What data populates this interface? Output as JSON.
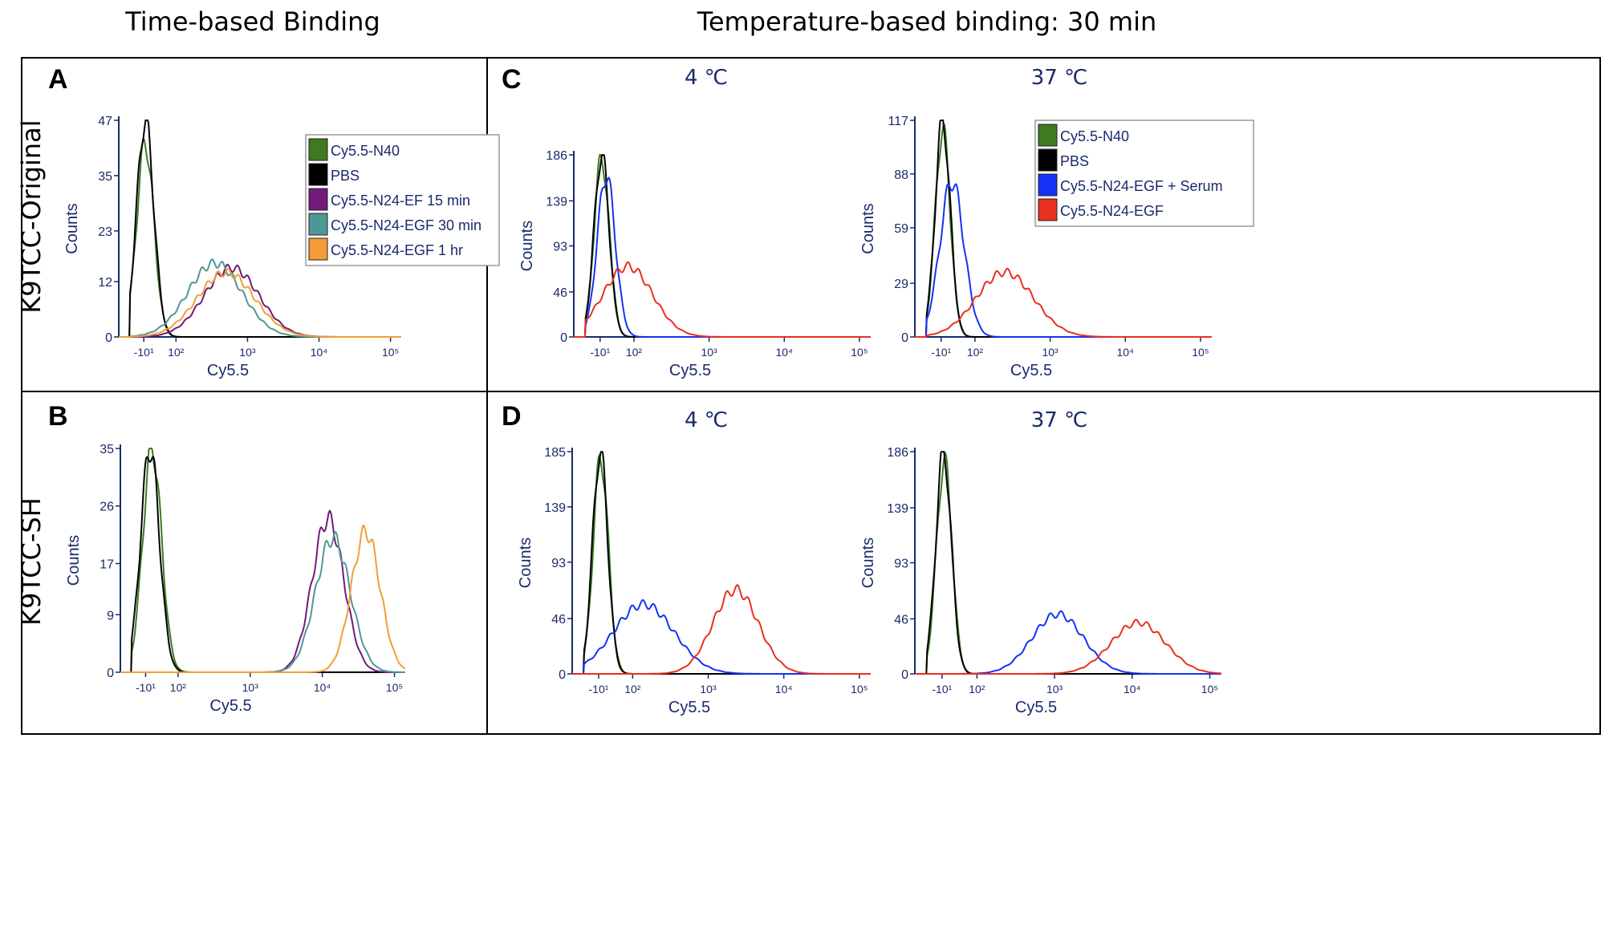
{
  "figure": {
    "col_titles": [
      "Time-based Binding",
      "Temperature-based binding: 30 min"
    ],
    "row_labels": [
      "K9TCC-Original",
      "K9TCC-SH"
    ],
    "panel_letters": [
      "A",
      "B",
      "C",
      "D"
    ],
    "subtitles": [
      "4 ℃",
      "37 ℃",
      "4 ℃",
      "37 ℃"
    ],
    "legends": {
      "time": [
        "Cy5.5-N40",
        "PBS",
        "Cy5.5-N24-EF 15 min",
        "Cy5.5-N24-EGF 30 min",
        "Cy5.5-N24-EGF 1 hr"
      ],
      "temp": [
        "Cy5.5-N40",
        "PBS",
        "Cy5.5-N24-EGF + Serum",
        "Cy5.5-N24-EGF"
      ]
    },
    "colors": {
      "green": "#3d7a22",
      "black": "#000000",
      "purple": "#731a7a",
      "teal": "#4f9796",
      "orange": "#f29d37",
      "blue": "#1432f5",
      "red": "#e8301f",
      "axis": "#1a2a6c"
    }
  },
  "chart_data": [
    {
      "panel": "A",
      "type": "line",
      "xlabel": "Cy5.5",
      "ylabel": "Counts",
      "x_scale": "biexponential",
      "xticks": [
        "-10¹",
        "10²",
        "10³",
        "10⁴",
        "10⁵"
      ],
      "yticks": [
        "0",
        "12",
        "23",
        "35",
        "47"
      ],
      "ylim": [
        0,
        47
      ],
      "legend": "time",
      "series": [
        {
          "name": "Cy5.5-N40",
          "color": "green",
          "peak_x": -5,
          "peak_count": 42,
          "spread": 0.12
        },
        {
          "name": "PBS",
          "color": "black",
          "peak_x": -5,
          "peak_count": 47,
          "spread": 0.12
        },
        {
          "name": "Cy5.5-N24-EF 15 min",
          "color": "purple",
          "peak_x": 600,
          "peak_count": 15,
          "spread": 0.38
        },
        {
          "name": "Cy5.5-N24-EGF 30 min",
          "color": "teal",
          "peak_x": 350,
          "peak_count": 16,
          "spread": 0.38
        },
        {
          "name": "Cy5.5-N24-EGF 1 hr",
          "color": "orange",
          "peak_x": 500,
          "peak_count": 14,
          "spread": 0.4
        }
      ]
    },
    {
      "panel": "B",
      "type": "line",
      "xlabel": "Cy5.5",
      "ylabel": "Counts",
      "x_scale": "biexponential",
      "xticks": [
        "-10¹",
        "10²",
        "10³",
        "10⁴",
        "10⁵"
      ],
      "yticks": [
        "0",
        "9",
        "17",
        "26",
        "35"
      ],
      "ylim": [
        0,
        35
      ],
      "series": [
        {
          "name": "Cy5.5-N40",
          "color": "green",
          "peak_x": 12,
          "peak_count": 35,
          "spread": 0.13
        },
        {
          "name": "PBS",
          "color": "black",
          "peak_x": 5,
          "peak_count": 35,
          "spread": 0.13
        },
        {
          "name": "Cy5.5-N24-EF 15 min",
          "color": "purple",
          "peak_x": 12000,
          "peak_count": 24,
          "spread": 0.22
        },
        {
          "name": "Cy5.5-N24-EGF 30 min",
          "color": "teal",
          "peak_x": 14000,
          "peak_count": 21,
          "spread": 0.24
        },
        {
          "name": "Cy5.5-N24-EGF 1 hr",
          "color": "orange",
          "peak_x": 40000,
          "peak_count": 22,
          "spread": 0.2
        }
      ]
    },
    {
      "panel": "C-4",
      "type": "line",
      "xlabel": "Cy5.5",
      "ylabel": "Counts",
      "x_scale": "biexponential",
      "xticks": [
        "-10¹",
        "10²",
        "10³",
        "10⁴",
        "10⁵"
      ],
      "yticks": [
        "0",
        "46",
        "93",
        "139",
        "186"
      ],
      "ylim": [
        0,
        186
      ],
      "series": [
        {
          "name": "Cy5.5-N40",
          "color": "green",
          "peak_x": -5,
          "peak_count": 183,
          "spread": 0.1
        },
        {
          "name": "PBS",
          "color": "black",
          "peak_x": -5,
          "peak_count": 186,
          "spread": 0.1
        },
        {
          "name": "Cy5.5-N24-EGF + Serum",
          "color": "blue",
          "peak_x": 10,
          "peak_count": 165,
          "spread": 0.12
        },
        {
          "name": "Cy5.5-N24-EGF",
          "color": "red",
          "peak_x": 80,
          "peak_count": 72,
          "spread": 0.33
        }
      ]
    },
    {
      "panel": "C-37",
      "type": "line",
      "xlabel": "Cy5.5",
      "ylabel": "Counts",
      "x_scale": "biexponential",
      "xticks": [
        "-10¹",
        "10²",
        "10³",
        "10⁴",
        "10⁵"
      ],
      "yticks": [
        "0",
        "29",
        "59",
        "88",
        "117"
      ],
      "ylim": [
        0,
        117
      ],
      "legend": "temp",
      "series": [
        {
          "name": "Cy5.5-N40",
          "color": "green",
          "peak_x": -5,
          "peak_count": 112,
          "spread": 0.1
        },
        {
          "name": "PBS",
          "color": "black",
          "peak_x": -5,
          "peak_count": 117,
          "spread": 0.1
        },
        {
          "name": "Cy5.5-N24-EGF + Serum",
          "color": "blue",
          "peak_x": 25,
          "peak_count": 84,
          "spread": 0.16
        },
        {
          "name": "Cy5.5-N24-EGF",
          "color": "red",
          "peak_x": 250,
          "peak_count": 35,
          "spread": 0.38
        }
      ]
    },
    {
      "panel": "D-4",
      "type": "line",
      "xlabel": "Cy5.5",
      "ylabel": "Counts",
      "x_scale": "biexponential",
      "xticks": [
        "-10¹",
        "10²",
        "10³",
        "10⁴",
        "10⁵"
      ],
      "yticks": [
        "0",
        "46",
        "93",
        "139",
        "185"
      ],
      "ylim": [
        0,
        185
      ],
      "series": [
        {
          "name": "Cy5.5-N40",
          "color": "green",
          "peak_x": -3,
          "peak_count": 180,
          "spread": 0.1
        },
        {
          "name": "PBS",
          "color": "black",
          "peak_x": -5,
          "peak_count": 185,
          "spread": 0.1
        },
        {
          "name": "Cy5.5-N24-EGF + Serum",
          "color": "blue",
          "peak_x": 140,
          "peak_count": 58,
          "spread": 0.4
        },
        {
          "name": "Cy5.5-N24-EGF",
          "color": "red",
          "peak_x": 2300,
          "peak_count": 70,
          "spread": 0.3
        }
      ]
    },
    {
      "panel": "D-37",
      "type": "line",
      "xlabel": "Cy5.5",
      "ylabel": "Counts",
      "x_scale": "biexponential",
      "xticks": [
        "-10¹",
        "10²",
        "10³",
        "10⁴",
        "10⁵"
      ],
      "yticks": [
        "0",
        "46",
        "93",
        "139",
        "186"
      ],
      "ylim": [
        0,
        186
      ],
      "series": [
        {
          "name": "Cy5.5-N40",
          "color": "green",
          "peak_x": -3,
          "peak_count": 178,
          "spread": 0.1
        },
        {
          "name": "PBS",
          "color": "black",
          "peak_x": -5,
          "peak_count": 186,
          "spread": 0.1
        },
        {
          "name": "Cy5.5-N24-EGF + Serum",
          "color": "blue",
          "peak_x": 1100,
          "peak_count": 50,
          "spread": 0.33
        },
        {
          "name": "Cy5.5-N24-EGF",
          "color": "red",
          "peak_x": 12000,
          "peak_count": 43,
          "spread": 0.35
        }
      ]
    }
  ]
}
